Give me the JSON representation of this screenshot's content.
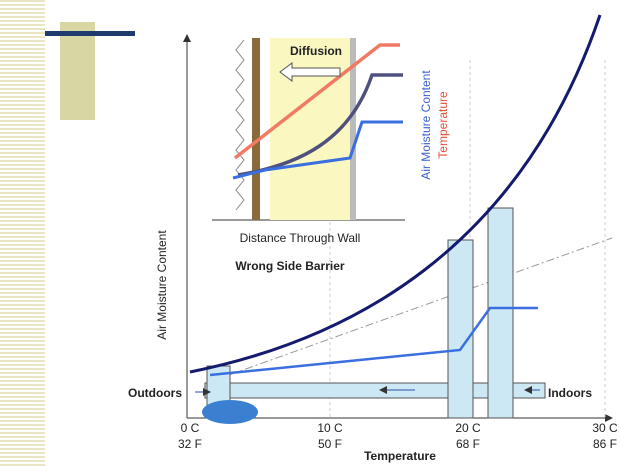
{
  "inset": {
    "arrow_label": "Diffusion",
    "legend": [
      "Air Moisture Content",
      "Temperature"
    ],
    "x_label": "Distance Through Wall"
  },
  "caption": "Wrong Side Barrier",
  "axes": {
    "y_label": "Air Moisture Content",
    "x_label": "Temperature",
    "x_ticks": [
      [
        "0 C",
        "32 F"
      ],
      [
        "10 C",
        "50 F"
      ],
      [
        "20 C",
        "68 F"
      ],
      [
        "30 C",
        "86 F"
      ]
    ]
  },
  "flow_labels": [
    "Outdoors",
    "Indoors"
  ]
}
